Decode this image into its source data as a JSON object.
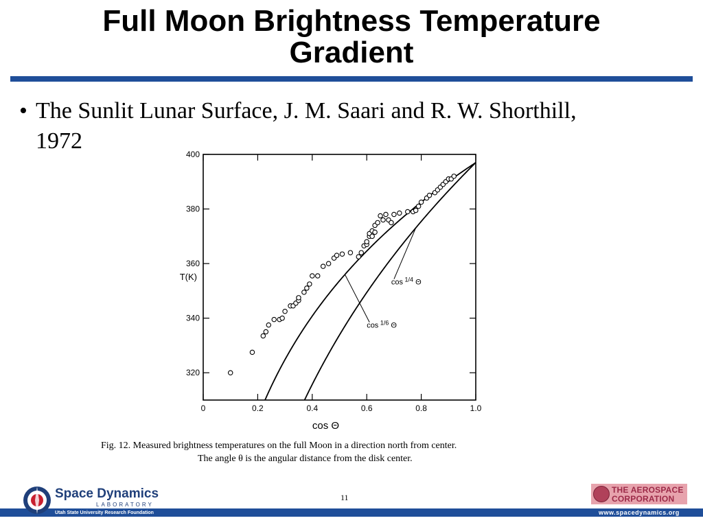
{
  "slide": {
    "title_line1": "Full Moon Brightness Temperature",
    "title_line2": "Gradient",
    "bullet_marker": "•",
    "bullet_line1": "The Sunlit Lunar Surface, J. M. Saari and R. W. Shorthill,",
    "bullet_line2": "1972",
    "page_number": "11"
  },
  "caption": {
    "line1": "Fig. 12.   Measured brightness temperatures on the full Moon in a direction north from center.",
    "line2": "The angle θ is the angular distance from the disk center."
  },
  "footer": {
    "sdl_name": "Space Dynamics",
    "sdl_sub": "LABORATORY",
    "sdl_tagline": "Utah State University Research Foundation",
    "aero_line1": "THE AEROSPACE",
    "aero_line2": "CORPORATION",
    "website": "www.spacedynamics.org"
  },
  "colors": {
    "accent_bar": "#1f4e99",
    "aero_brand": "#9c2a48"
  },
  "chart_data": {
    "type": "scatter",
    "title": "",
    "xlabel": "cos Θ",
    "ylabel": "T(K)",
    "xlim": [
      0,
      1.0
    ],
    "ylim": [
      310,
      400
    ],
    "x_ticks": [
      0,
      0.2,
      0.4,
      0.6,
      0.8,
      1.0
    ],
    "x_tick_labels": [
      "0",
      "0.2",
      "0.4",
      "0.6",
      "0.8",
      "1.0"
    ],
    "y_ticks": [
      320,
      340,
      360,
      380,
      400
    ],
    "y_tick_labels": [
      "320",
      "340",
      "360",
      "380",
      "400"
    ],
    "grid": false,
    "series": [
      {
        "kind": "points",
        "x": [
          0.1,
          0.18,
          0.22,
          0.23,
          0.24,
          0.26,
          0.28,
          0.29,
          0.3,
          0.32,
          0.33,
          0.34,
          0.35,
          0.35,
          0.37,
          0.38,
          0.39,
          0.4,
          0.42,
          0.44,
          0.46,
          0.48,
          0.49,
          0.51,
          0.54,
          0.57,
          0.58,
          0.59,
          0.6,
          0.6,
          0.61,
          0.61,
          0.62,
          0.62,
          0.63,
          0.63,
          0.64,
          0.65,
          0.66,
          0.67,
          0.68,
          0.69,
          0.7,
          0.72,
          0.75,
          0.77,
          0.78,
          0.79,
          0.8,
          0.82,
          0.83,
          0.85,
          0.86,
          0.87,
          0.88,
          0.89,
          0.9,
          0.91,
          0.92
        ],
        "y": [
          320,
          327.5,
          333.5,
          335,
          337.5,
          339.5,
          339.5,
          340,
          342.5,
          344.5,
          344.5,
          345.5,
          346.5,
          347.5,
          349.5,
          351,
          352.5,
          355.5,
          355.5,
          359,
          360,
          362,
          363,
          363.5,
          364,
          362.5,
          364,
          366.5,
          367,
          368,
          370,
          371,
          370,
          372,
          371.5,
          374,
          375,
          377.5,
          376,
          378,
          376,
          375,
          378,
          378.5,
          379,
          379,
          379.5,
          381,
          382.5,
          384,
          385,
          386,
          387,
          388,
          389,
          390,
          391,
          391,
          392
        ]
      },
      {
        "kind": "curve",
        "name": "cos1/6 Θ",
        "exponent": 0.1667,
        "t_at_unity": 397
      },
      {
        "kind": "curve",
        "name": "cos1/4 Θ",
        "exponent": 0.25,
        "t_at_unity": 397
      }
    ],
    "annotations": [
      {
        "text": "cos",
        "power": "1/4",
        "symbol": "Θ",
        "points_to": "cos1/4 Θ"
      },
      {
        "text": "cos",
        "power": "1/6",
        "symbol": "Θ",
        "points_to": "cos1/6 Θ"
      }
    ]
  }
}
